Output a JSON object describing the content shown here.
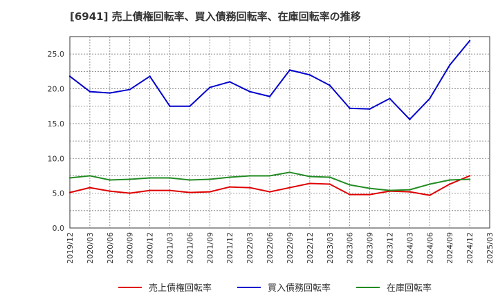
{
  "chart_data": {
    "type": "line",
    "title": "[6941]  売上債権回転率、買入債務回転率、在庫回転率の推移",
    "xlabel": "",
    "ylabel": "",
    "ylim": [
      0,
      27.5
    ],
    "yticks": [
      0,
      5,
      10,
      15,
      20,
      25
    ],
    "ytick_labels": [
      "0.0",
      "5.0",
      "10.0",
      "15.0",
      "20.0",
      "25.0"
    ],
    "grid": true,
    "legend_position": "bottom",
    "categories": [
      "2019/12",
      "2020/03",
      "2020/06",
      "2020/09",
      "2020/12",
      "2021/03",
      "2021/06",
      "2021/09",
      "2021/12",
      "2022/03",
      "2022/06",
      "2022/09",
      "2022/12",
      "2023/03",
      "2023/06",
      "2023/09",
      "2023/12",
      "2024/03",
      "2024/06",
      "2024/09",
      "2024/12",
      "2025/03"
    ],
    "series": [
      {
        "name": "売上債権回転率",
        "color": "#e00000",
        "values": [
          5.1,
          5.8,
          5.3,
          5.0,
          5.4,
          5.4,
          5.1,
          5.2,
          5.9,
          5.8,
          5.2,
          5.8,
          6.4,
          6.3,
          4.8,
          4.8,
          5.3,
          5.2,
          4.7,
          6.3,
          7.5,
          null
        ]
      },
      {
        "name": "買入債務回転率",
        "color": "#0000cc",
        "values": [
          21.8,
          19.6,
          19.4,
          19.9,
          21.8,
          17.5,
          17.5,
          20.2,
          21.0,
          19.6,
          18.9,
          22.7,
          22.0,
          20.5,
          17.2,
          17.1,
          18.6,
          15.6,
          18.6,
          23.4,
          26.9,
          null
        ]
      },
      {
        "name": "在庫回転率",
        "color": "#228b22",
        "values": [
          7.2,
          7.5,
          6.9,
          7.0,
          7.2,
          7.2,
          6.9,
          7.0,
          7.3,
          7.5,
          7.5,
          8.0,
          7.4,
          7.3,
          6.2,
          5.7,
          5.4,
          5.5,
          6.3,
          6.9,
          7.0,
          null
        ]
      }
    ]
  }
}
